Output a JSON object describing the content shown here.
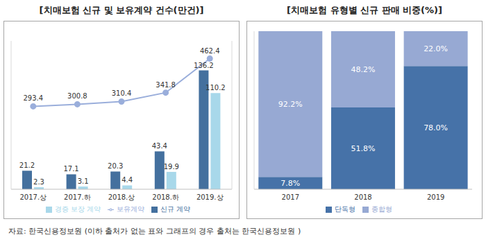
{
  "chart_data": [
    {
      "type": "bar",
      "title": "[치매보험 신규 및 보유계약 건수(만건)]",
      "categories": [
        "2017.상",
        "2017.하",
        "2018.상",
        "2018.하",
        "2019.상"
      ],
      "series": [
        {
          "name": "신규 계약",
          "type": "bar",
          "color": "#44709e",
          "values": [
            21.2,
            17.1,
            20.3,
            43.4,
            136.2
          ]
        },
        {
          "name": "경증 보장 계약",
          "type": "bar",
          "color": "#a8d8ea",
          "values": [
            2.3,
            3.1,
            4.4,
            19.9,
            110.2
          ]
        },
        {
          "name": "보유계약",
          "type": "line",
          "axis": "y2",
          "color": "#9aaedb",
          "marker": "circle",
          "values": [
            293.4,
            300.8,
            310.4,
            341.8,
            462.4
          ]
        }
      ],
      "ylim": [
        0,
        170
      ],
      "y2lim": [
        0,
        525
      ],
      "data_labels": true,
      "tick_labels": "x",
      "legend": "bottom"
    },
    {
      "type": "bar",
      "stacked": true,
      "title": "[치매보험 유형별 신규 판매 비중(%)]",
      "categories": [
        "2017",
        "2018",
        "2019"
      ],
      "series": [
        {
          "name": "단독형",
          "color": "#4672a8",
          "values": [
            7.8,
            51.8,
            78.0
          ],
          "value_labels": [
            "7.8%",
            "51.8%",
            "78.0%"
          ]
        },
        {
          "name": "종합형",
          "color": "#97a9d3",
          "values": [
            92.2,
            48.2,
            22.0
          ],
          "value_labels": [
            "92.2%",
            "48.2%",
            "22.0%"
          ]
        }
      ],
      "ylim": [
        0,
        100
      ],
      "data_labels": true,
      "tick_labels": "x",
      "legend": "bottom"
    }
  ],
  "source": "자료: 한국신용정보원 (이하 출처가 없는 표와 그래프의 경우 출처는 한국신용정보원 )"
}
